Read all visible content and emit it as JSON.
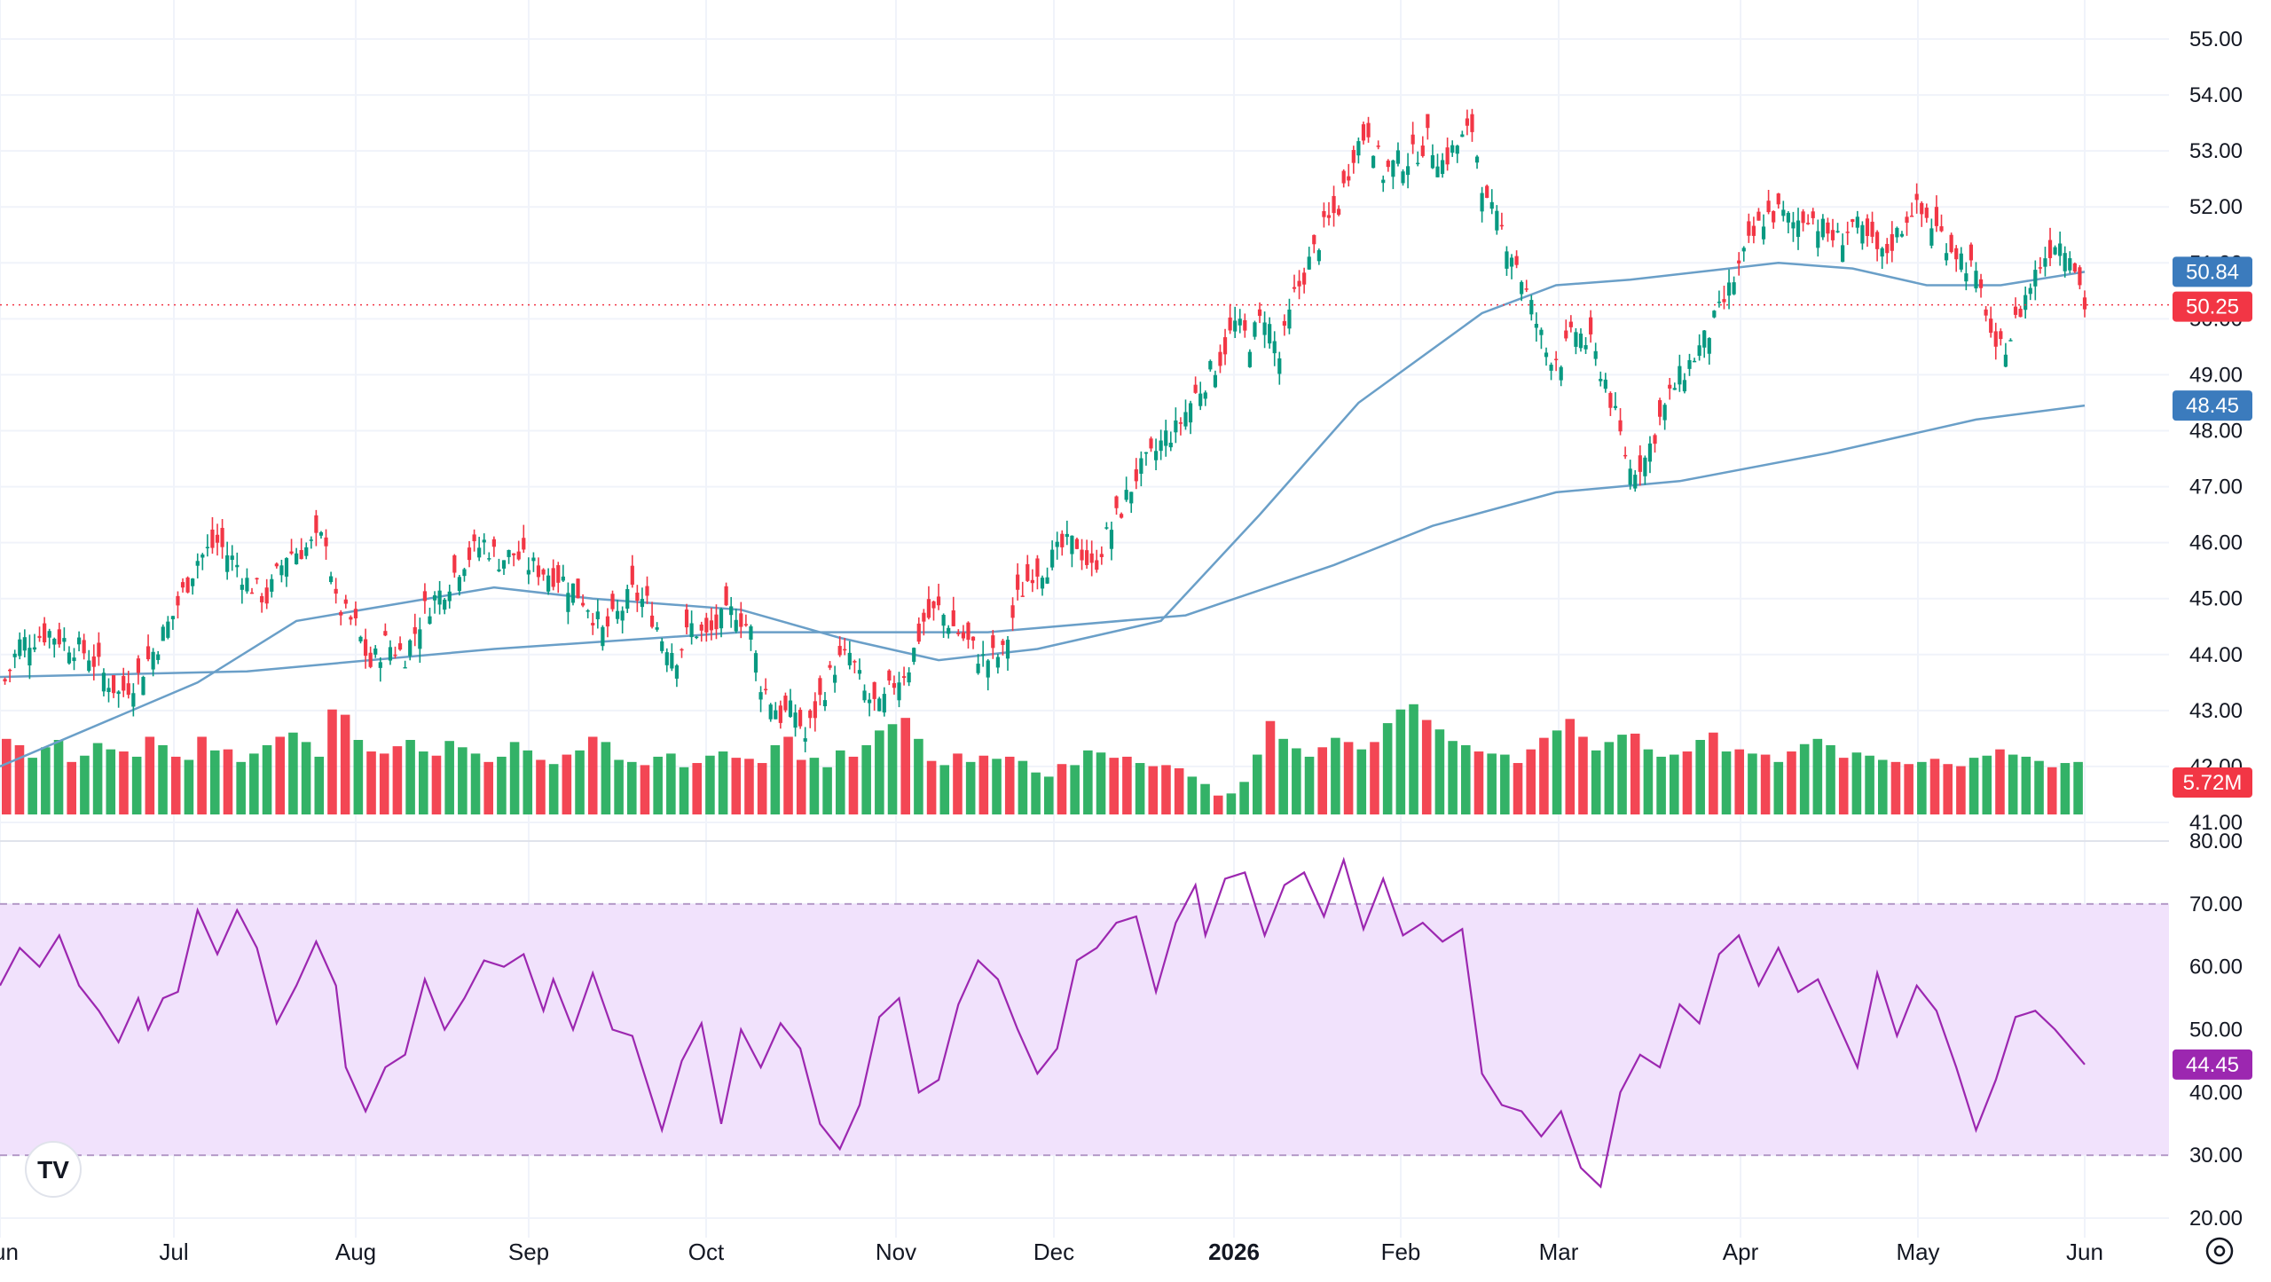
{
  "chart_data": [
    {
      "type": "candlestick",
      "title": "",
      "x_dates": {
        "start": "2025-06-02",
        "end": "2026-06-01",
        "ticks": [
          "Jun",
          "Jul",
          "Aug",
          "Sep",
          "Oct",
          "Nov",
          "Dec",
          "2026",
          "Feb",
          "Mar",
          "Apr",
          "May",
          "Jun"
        ]
      },
      "y_ticks": [
        "41.00",
        "42.00",
        "43.00",
        "44.00",
        "45.00",
        "46.00",
        "47.00",
        "48.00",
        "49.00",
        "50.00",
        "51.00",
        "52.00",
        "53.00",
        "54.00",
        "55.00"
      ],
      "ylim": [
        41.0,
        55.0
      ],
      "grid": true,
      "colors": {
        "up": "#089981",
        "down": "#f23645",
        "ma": "#6a9fc8",
        "ma_tag": "#3b7bbd"
      },
      "price_close_series": [
        [
          0,
          43.3
        ],
        [
          4,
          44.2
        ],
        [
          10,
          44.4
        ],
        [
          18,
          44.0
        ],
        [
          24,
          43.3
        ],
        [
          28,
          43.6
        ],
        [
          32,
          44.2
        ],
        [
          35,
          44.7
        ],
        [
          40,
          45.7
        ],
        [
          44,
          46.0
        ],
        [
          48,
          45.6
        ],
        [
          50,
          45.3
        ],
        [
          54,
          45.0
        ],
        [
          58,
          45.8
        ],
        [
          62,
          45.9
        ],
        [
          66,
          46.1
        ],
        [
          68,
          44.9
        ],
        [
          72,
          44.5
        ],
        [
          75,
          43.8
        ],
        [
          78,
          44.2
        ],
        [
          82,
          44.0
        ],
        [
          86,
          44.8
        ],
        [
          90,
          45.2
        ],
        [
          94,
          45.7
        ],
        [
          98,
          46.0
        ],
        [
          101,
          45.7
        ],
        [
          104,
          45.8
        ],
        [
          107,
          45.6
        ],
        [
          110,
          45.5
        ],
        [
          113,
          45.4
        ],
        [
          116,
          45.2
        ],
        [
          119,
          44.9
        ],
        [
          122,
          44.4
        ],
        [
          125,
          44.7
        ],
        [
          128,
          45.1
        ],
        [
          131,
          44.9
        ],
        [
          134,
          44.3
        ],
        [
          137,
          44.0
        ],
        [
          140,
          44.5
        ],
        [
          143,
          44.3
        ],
        [
          146,
          44.6
        ],
        [
          149,
          44.8
        ],
        [
          152,
          44.4
        ],
        [
          154,
          43.5
        ],
        [
          158,
          42.9
        ],
        [
          161,
          43.0
        ],
        [
          163,
          42.5
        ],
        [
          166,
          43.2
        ],
        [
          169,
          43.8
        ],
        [
          172,
          44.0
        ],
        [
          175,
          43.3
        ],
        [
          178,
          43.0
        ],
        [
          181,
          43.5
        ],
        [
          184,
          43.8
        ],
        [
          187,
          44.6
        ],
        [
          190,
          44.8
        ],
        [
          193,
          44.5
        ],
        [
          196,
          44.2
        ],
        [
          199,
          43.9
        ],
        [
          203,
          44.0
        ],
        [
          206,
          45.0
        ],
        [
          209,
          45.5
        ],
        [
          212,
          45.6
        ],
        [
          215,
          45.9
        ],
        [
          218,
          46.0
        ],
        [
          221,
          45.5
        ],
        [
          224,
          46.1
        ],
        [
          227,
          46.6
        ],
        [
          230,
          47.2
        ],
        [
          233,
          47.5
        ],
        [
          236,
          47.9
        ],
        [
          238,
          48.0
        ],
        [
          241,
          48.5
        ],
        [
          244,
          48.9
        ],
        [
          247,
          49.3
        ],
        [
          250,
          49.9
        ],
        [
          253,
          49.6
        ],
        [
          256,
          50.1
        ],
        [
          259,
          49.3
        ],
        [
          262,
          50.4
        ],
        [
          265,
          51.0
        ],
        [
          268,
          51.6
        ],
        [
          271,
          52.0
        ],
        [
          274,
          53.0
        ],
        [
          277,
          53.4
        ],
        [
          280,
          52.6
        ],
        [
          283,
          52.8
        ],
        [
          286,
          52.9
        ],
        [
          289,
          53.2
        ],
        [
          292,
          52.8
        ],
        [
          295,
          53.1
        ],
        [
          298,
          53.4
        ],
        [
          301,
          52.0
        ],
        [
          304,
          51.6
        ],
        [
          307,
          51.0
        ],
        [
          310,
          50.2
        ],
        [
          313,
          49.4
        ],
        [
          316,
          49.3
        ],
        [
          319,
          49.8
        ],
        [
          322,
          49.5
        ],
        [
          325,
          48.9
        ],
        [
          328,
          47.9
        ],
        [
          330,
          47.3
        ],
        [
          333,
          47.5
        ],
        [
          336,
          48.2
        ],
        [
          339,
          48.8
        ],
        [
          342,
          49.2
        ],
        [
          345,
          49.6
        ],
        [
          348,
          50.1
        ],
        [
          351,
          50.7
        ],
        [
          354,
          51.3
        ],
        [
          357,
          51.8
        ],
        [
          360,
          51.9
        ],
        [
          363,
          51.7
        ],
        [
          366,
          51.9
        ],
        [
          369,
          51.6
        ],
        [
          372,
          51.4
        ],
        [
          375,
          51.7
        ],
        [
          378,
          51.4
        ],
        [
          381,
          51.1
        ],
        [
          384,
          51.5
        ],
        [
          387,
          52.0
        ],
        [
          390,
          51.8
        ],
        [
          393,
          51.5
        ],
        [
          396,
          51.2
        ],
        [
          399,
          50.9
        ],
        [
          402,
          50.2
        ],
        [
          404,
          49.3
        ],
        [
          407,
          49.7
        ],
        [
          410,
          50.4
        ],
        [
          413,
          51.0
        ],
        [
          416,
          51.4
        ],
        [
          419,
          51.3
        ],
        [
          422,
          50.25
        ]
      ],
      "ma_50": [
        [
          0,
          42.0
        ],
        [
          40,
          43.5
        ],
        [
          60,
          44.6
        ],
        [
          80,
          44.9
        ],
        [
          100,
          45.2
        ],
        [
          120,
          45.0
        ],
        [
          150,
          44.8
        ],
        [
          170,
          44.3
        ],
        [
          190,
          43.9
        ],
        [
          210,
          44.1
        ],
        [
          235,
          44.6
        ],
        [
          255,
          46.5
        ],
        [
          275,
          48.5
        ],
        [
          300,
          50.1
        ],
        [
          315,
          50.6
        ],
        [
          330,
          50.7
        ],
        [
          350,
          50.9
        ],
        [
          360,
          51.0
        ],
        [
          375,
          50.9
        ],
        [
          390,
          50.6
        ],
        [
          405,
          50.6
        ],
        [
          422,
          50.84
        ]
      ],
      "ma_200": [
        [
          0,
          43.6
        ],
        [
          50,
          43.7
        ],
        [
          100,
          44.1
        ],
        [
          150,
          44.4
        ],
        [
          200,
          44.4
        ],
        [
          240,
          44.7
        ],
        [
          270,
          45.6
        ],
        [
          290,
          46.3
        ],
        [
          315,
          46.9
        ],
        [
          340,
          47.1
        ],
        [
          370,
          47.6
        ],
        [
          400,
          48.2
        ],
        [
          422,
          48.45
        ]
      ],
      "volume_relative": [
        0.72,
        0.66,
        0.54,
        0.64,
        0.71,
        0.5,
        0.56,
        0.68,
        0.62,
        0.6,
        0.55,
        0.74,
        0.66,
        0.55,
        0.52,
        0.74,
        0.61,
        0.62,
        0.5,
        0.58,
        0.66,
        0.74,
        0.78,
        0.69,
        0.55,
        1.0,
        0.95,
        0.71,
        0.6,
        0.58,
        0.65,
        0.71,
        0.6,
        0.56,
        0.7,
        0.64,
        0.58,
        0.5,
        0.55,
        0.69,
        0.61,
        0.52,
        0.48,
        0.57,
        0.61,
        0.74,
        0.69,
        0.52,
        0.5,
        0.47,
        0.55,
        0.58,
        0.45,
        0.49,
        0.56,
        0.6,
        0.54,
        0.53,
        0.49,
        0.66,
        0.74,
        0.52,
        0.54,
        0.45,
        0.61,
        0.55,
        0.66,
        0.8,
        0.86,
        0.92,
        0.72,
        0.51,
        0.47,
        0.58,
        0.5,
        0.56,
        0.53,
        0.55,
        0.51,
        0.4,
        0.36,
        0.48,
        0.47,
        0.61,
        0.59,
        0.54,
        0.55,
        0.49,
        0.46,
        0.47,
        0.44,
        0.36,
        0.29,
        0.18,
        0.2,
        0.31,
        0.57,
        0.89,
        0.72,
        0.63,
        0.55,
        0.64,
        0.73,
        0.69,
        0.62,
        0.69,
        0.87,
        1.0,
        1.05,
        0.9,
        0.81,
        0.7,
        0.66,
        0.6,
        0.58,
        0.57,
        0.49,
        0.62,
        0.73,
        0.8,
        0.91,
        0.74,
        0.61,
        0.69,
        0.76,
        0.77,
        0.62,
        0.55,
        0.57,
        0.6,
        0.71,
        0.78,
        0.6,
        0.62,
        0.58,
        0.57,
        0.5,
        0.6,
        0.67,
        0.72,
        0.66,
        0.54,
        0.59,
        0.56,
        0.52,
        0.5,
        0.48,
        0.5,
        0.53,
        0.48,
        0.46,
        0.54,
        0.56,
        0.62,
        0.57,
        0.55,
        0.51,
        0.45,
        0.49,
        0.5
      ],
      "volume_last_label": "5.72M",
      "price_tags": [
        {
          "label": "50.84",
          "value": 50.84,
          "series": "ma_50"
        },
        {
          "label": "50.25",
          "value": 50.25,
          "series": "price"
        },
        {
          "label": "48.45",
          "value": 48.45,
          "series": "ma_200"
        },
        {
          "label": "5.72M",
          "series": "volume"
        }
      ]
    },
    {
      "type": "line",
      "indicator": "RSI",
      "y_ticks": [
        "20.00",
        "30.00",
        "40.00",
        "50.00",
        "60.00",
        "70.00",
        "80.00"
      ],
      "ylim": [
        20,
        80
      ],
      "bands": {
        "upper": 70,
        "lower": 30
      },
      "colors": {
        "line": "#9c27b0",
        "band_fill": "#f1e2fc",
        "tag": "#9c27b0"
      },
      "rsi_series": [
        [
          0,
          57
        ],
        [
          4,
          63
        ],
        [
          8,
          60
        ],
        [
          12,
          65
        ],
        [
          16,
          57
        ],
        [
          20,
          53
        ],
        [
          24,
          48
        ],
        [
          28,
          55
        ],
        [
          30,
          50
        ],
        [
          33,
          55
        ],
        [
          36,
          56
        ],
        [
          40,
          69
        ],
        [
          44,
          62
        ],
        [
          48,
          69
        ],
        [
          52,
          63
        ],
        [
          56,
          51
        ],
        [
          60,
          57
        ],
        [
          64,
          64
        ],
        [
          68,
          57
        ],
        [
          70,
          44
        ],
        [
          74,
          37
        ],
        [
          78,
          44
        ],
        [
          82,
          46
        ],
        [
          86,
          58
        ],
        [
          90,
          50
        ],
        [
          94,
          55
        ],
        [
          98,
          61
        ],
        [
          102,
          60
        ],
        [
          106,
          62
        ],
        [
          110,
          53
        ],
        [
          112,
          58
        ],
        [
          116,
          50
        ],
        [
          120,
          59
        ],
        [
          124,
          50
        ],
        [
          128,
          49
        ],
        [
          130,
          44
        ],
        [
          134,
          34
        ],
        [
          138,
          45
        ],
        [
          142,
          51
        ],
        [
          146,
          35
        ],
        [
          150,
          50
        ],
        [
          154,
          44
        ],
        [
          158,
          51
        ],
        [
          162,
          47
        ],
        [
          166,
          35
        ],
        [
          170,
          31
        ],
        [
          174,
          38
        ],
        [
          178,
          52
        ],
        [
          182,
          55
        ],
        [
          186,
          40
        ],
        [
          190,
          42
        ],
        [
          194,
          54
        ],
        [
          198,
          61
        ],
        [
          202,
          58
        ],
        [
          206,
          50
        ],
        [
          210,
          43
        ],
        [
          214,
          47
        ],
        [
          218,
          61
        ],
        [
          222,
          63
        ],
        [
          226,
          67
        ],
        [
          230,
          68
        ],
        [
          234,
          56
        ],
        [
          238,
          67
        ],
        [
          242,
          73
        ],
        [
          244,
          65
        ],
        [
          248,
          74
        ],
        [
          252,
          75
        ],
        [
          256,
          65
        ],
        [
          260,
          73
        ],
        [
          264,
          75
        ],
        [
          268,
          68
        ],
        [
          272,
          77
        ],
        [
          276,
          66
        ],
        [
          280,
          74
        ],
        [
          284,
          65
        ],
        [
          288,
          67
        ],
        [
          292,
          64
        ],
        [
          296,
          66
        ],
        [
          300,
          43
        ],
        [
          304,
          38
        ],
        [
          308,
          37
        ],
        [
          312,
          33
        ],
        [
          316,
          37
        ],
        [
          320,
          28
        ],
        [
          324,
          25
        ],
        [
          328,
          40
        ],
        [
          332,
          46
        ],
        [
          336,
          44
        ],
        [
          340,
          54
        ],
        [
          344,
          51
        ],
        [
          348,
          62
        ],
        [
          352,
          65
        ],
        [
          356,
          57
        ],
        [
          360,
          63
        ],
        [
          364,
          56
        ],
        [
          368,
          58
        ],
        [
          372,
          51
        ],
        [
          376,
          44
        ],
        [
          380,
          59
        ],
        [
          384,
          49
        ],
        [
          388,
          57
        ],
        [
          392,
          53
        ],
        [
          396,
          44
        ],
        [
          400,
          34
        ],
        [
          404,
          42
        ],
        [
          408,
          52
        ],
        [
          412,
          53
        ],
        [
          416,
          50
        ],
        [
          422,
          44.45
        ]
      ],
      "last_tag": "44.45"
    }
  ],
  "footer": {
    "logo_text": "TV",
    "settings_icon": "gear-icon"
  }
}
